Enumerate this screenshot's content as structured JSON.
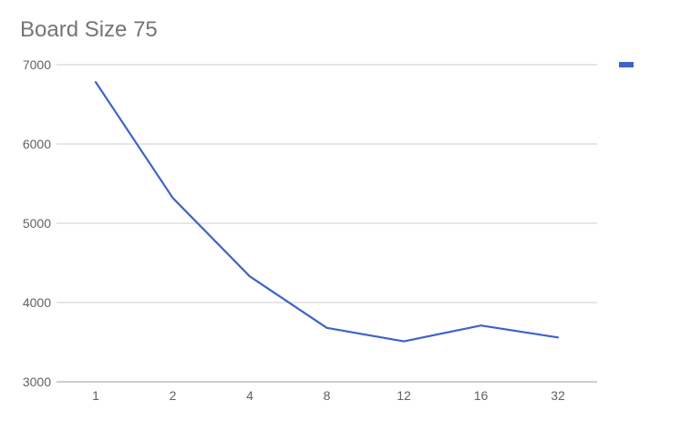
{
  "chart_data": {
    "type": "line",
    "title": "Board Size 75",
    "xlabel": "",
    "ylabel": "",
    "categories": [
      "1",
      "2",
      "4",
      "8",
      "12",
      "16",
      "32"
    ],
    "series": [
      {
        "values": [
          6780,
          5320,
          4330,
          3680,
          3510,
          3710,
          3560
        ],
        "color": "#3f63c8"
      }
    ],
    "ylim": [
      3000,
      7000
    ],
    "yticks": [
      3000,
      4000,
      5000,
      6000,
      7000
    ],
    "grid": true,
    "legend": "right"
  }
}
